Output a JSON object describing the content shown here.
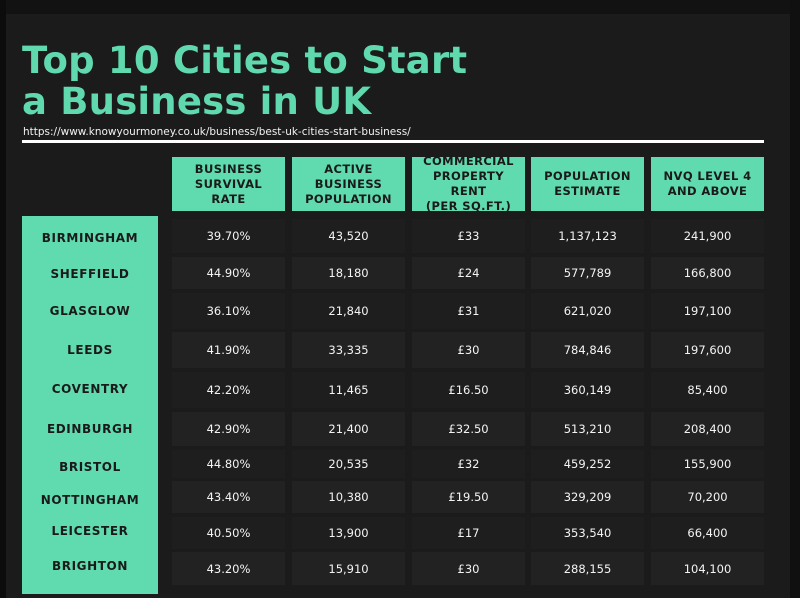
{
  "header": {
    "title_line1": "Top 10 Cities to Start",
    "title_line2": "a Business in UK",
    "url": "https://www.knowyourmoney.co.uk/business/best-uk-cities-start-business/"
  },
  "chart_data": {
    "type": "table",
    "title": "Top 10 Cities to Start a Business in UK",
    "columns": [
      {
        "key": "survival",
        "label_lines": [
          "BUSINESS",
          "SURVIVAL",
          "RATE"
        ]
      },
      {
        "key": "active",
        "label_lines": [
          "ACTIVE BUSINESS",
          "POPULATION"
        ]
      },
      {
        "key": "rent",
        "label_lines": [
          "COMMERCIAL",
          "PROPERTY RENT",
          "(PER SQ.FT.)"
        ]
      },
      {
        "key": "population",
        "label_lines": [
          "POPULATION",
          "ESTIMATE"
        ]
      },
      {
        "key": "nvq",
        "label_lines": [
          "NVQ LEVEL 4",
          "AND ABOVE"
        ]
      }
    ],
    "rows": [
      {
        "city": "BIRMINGHAM",
        "survival": "39.70%",
        "active": "43,520",
        "rent": "£33",
        "population": "1,137,123",
        "nvq": "241,900"
      },
      {
        "city": "SHEFFIELD",
        "survival": "44.90%",
        "active": "18,180",
        "rent": "£24",
        "population": "577,789",
        "nvq": "166,800"
      },
      {
        "city": "GLASGLOW",
        "survival": "36.10%",
        "active": "21,840",
        "rent": "£31",
        "population": "621,020",
        "nvq": "197,100"
      },
      {
        "city": "LEEDS",
        "survival": "41.90%",
        "active": "33,335",
        "rent": "£30",
        "population": "784,846",
        "nvq": "197,600"
      },
      {
        "city": "COVENTRY",
        "survival": "42.20%",
        "active": "11,465",
        "rent": "£16.50",
        "population": "360,149",
        "nvq": "85,400"
      },
      {
        "city": "EDINBURGH",
        "survival": "42.90%",
        "active": "21,400",
        "rent": "£32.50",
        "population": "513,210",
        "nvq": "208,400"
      },
      {
        "city": "BRISTOL",
        "survival": "44.80%",
        "active": "20,535",
        "rent": "£32",
        "population": "459,252",
        "nvq": "155,900"
      },
      {
        "city": "NOTTINGHAM",
        "survival": "43.40%",
        "active": "10,380",
        "rent": "£19.50",
        "population": "329,209",
        "nvq": "70,200"
      },
      {
        "city": "LEICESTER",
        "survival": "40.50%",
        "active": "13,900",
        "rent": "£17",
        "population": "353,540",
        "nvq": "66,400"
      },
      {
        "city": "BRIGHTON",
        "survival": "43.20%",
        "active": "15,910",
        "rent": "£30",
        "population": "288,155",
        "nvq": "104,100"
      }
    ]
  }
}
